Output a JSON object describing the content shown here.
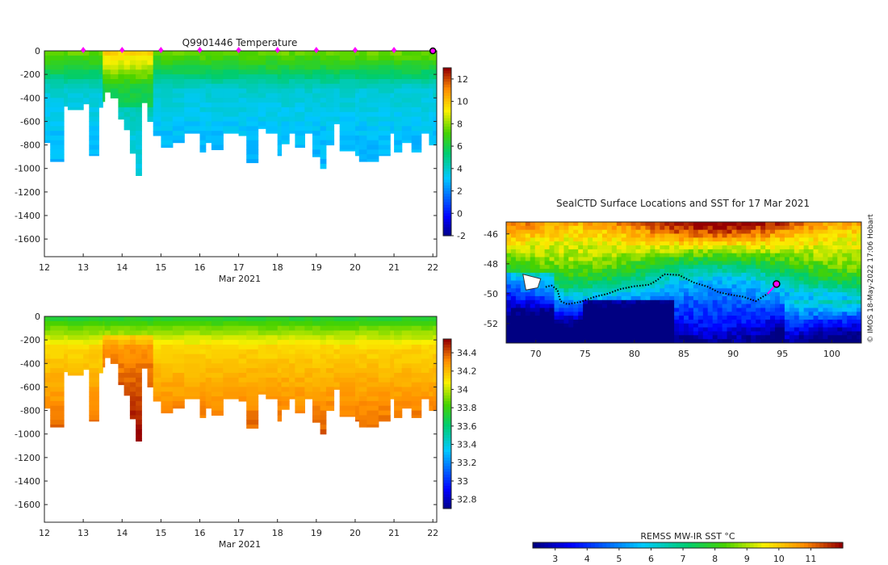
{
  "charts": {
    "temperature": {
      "title": "Q9901446  Temperature",
      "xlabel": "Mar 2021",
      "colorbar_ticks": [
        "12",
        "10",
        "8",
        "6",
        "4",
        "2",
        "0",
        "-2"
      ]
    },
    "salinity": {
      "xlabel": "Mar 2021",
      "colorbar_ticks": [
        "34.4",
        "34.2",
        "34",
        "33.8",
        "33.6",
        "33.4",
        "33.2",
        "33",
        "32.8"
      ]
    },
    "map": {
      "title": "SealCTD Surface Locations and SST for 17 Mar 2021",
      "colorbar_label": "REMSS MW-IR SST °C",
      "colorbar_ticks": [
        "3",
        "4",
        "5",
        "6",
        "7",
        "8",
        "9",
        "10",
        "11"
      ],
      "credit": "© IMOS 18-May-2022 17:06 Hobart"
    }
  },
  "chart_data": [
    {
      "type": "heatmap",
      "title": "Q9901446  Temperature",
      "xlabel": "Mar 2021",
      "ylabel": "",
      "x_ticks": [
        "12",
        "13",
        "14",
        "15",
        "16",
        "17",
        "18",
        "19",
        "20",
        "21",
        "22"
      ],
      "y_ticks": [
        "0",
        "-200",
        "-400",
        "-600",
        "-800",
        "-1000",
        "-1200",
        "-1400",
        "-1600"
      ],
      "xlim": [
        12,
        22.1
      ],
      "ylim": [
        -1750,
        0
      ],
      "colorbar_range": [
        -2,
        13
      ],
      "profile_days": [
        12.0,
        12.15,
        12.5,
        12.6,
        13.0,
        13.15,
        13.4,
        13.5,
        13.55,
        13.7,
        13.9,
        14.05,
        14.2,
        14.35,
        14.5,
        14.65,
        14.8,
        15.0,
        15.3,
        15.6,
        16.0,
        16.15,
        16.3,
        16.6,
        17.0,
        17.2,
        17.5,
        17.7,
        18.0,
        18.1,
        18.3,
        18.45,
        18.7,
        18.9,
        19.1,
        19.25,
        19.45,
        19.6,
        20.0,
        20.1,
        20.3,
        20.6,
        20.9,
        21.0,
        21.2,
        21.45,
        21.7,
        21.9,
        22.0
      ],
      "profile_max_depth": [
        -780,
        -940,
        -470,
        -500,
        -450,
        -890,
        -480,
        -430,
        -350,
        -400,
        -580,
        -670,
        -870,
        -1060,
        -440,
        -600,
        -720,
        -820,
        -780,
        -700,
        -860,
        -780,
        -840,
        -700,
        -720,
        -950,
        -660,
        -700,
        -890,
        -790,
        -700,
        -820,
        -700,
        -900,
        -1000,
        -800,
        -620,
        -850,
        -890,
        -940,
        -940,
        -890,
        -700,
        -860,
        -780,
        -860,
        -700,
        -800,
        -800
      ],
      "surface_marker_days": [
        13,
        14,
        15,
        16,
        17,
        18,
        19,
        20,
        21
      ]
    },
    {
      "type": "heatmap",
      "title": "",
      "xlabel": "Mar 2021",
      "ylabel": "",
      "x_ticks": [
        "12",
        "13",
        "14",
        "15",
        "16",
        "17",
        "18",
        "19",
        "20",
        "21",
        "22"
      ],
      "y_ticks": [
        "0",
        "-200",
        "-400",
        "-600",
        "-800",
        "-1000",
        "-1200",
        "-1400",
        "-1600"
      ],
      "xlim": [
        12,
        22.1
      ],
      "ylim": [
        -1750,
        0
      ],
      "colorbar_range": [
        32.7,
        34.55
      ],
      "profile_days": [
        12.0,
        12.15,
        12.5,
        12.6,
        13.0,
        13.15,
        13.4,
        13.5,
        13.55,
        13.7,
        13.9,
        14.05,
        14.2,
        14.35,
        14.5,
        14.65,
        14.8,
        15.0,
        15.3,
        15.6,
        16.0,
        16.15,
        16.3,
        16.6,
        17.0,
        17.2,
        17.5,
        17.7,
        18.0,
        18.1,
        18.3,
        18.45,
        18.7,
        18.9,
        19.1,
        19.25,
        19.45,
        19.6,
        20.0,
        20.1,
        20.3,
        20.6,
        20.9,
        21.0,
        21.2,
        21.45,
        21.7,
        21.9,
        22.0
      ],
      "profile_max_depth": [
        -780,
        -940,
        -470,
        -500,
        -450,
        -890,
        -480,
        -430,
        -350,
        -400,
        -580,
        -670,
        -870,
        -1060,
        -440,
        -600,
        -720,
        -820,
        -780,
        -700,
        -860,
        -780,
        -840,
        -700,
        -720,
        -950,
        -660,
        -700,
        -890,
        -790,
        -700,
        -820,
        -700,
        -900,
        -1000,
        -800,
        -620,
        -850,
        -890,
        -940,
        -940,
        -890,
        -700,
        -860,
        -780,
        -860,
        -700,
        -800,
        -800
      ]
    },
    {
      "type": "heatmap",
      "title": "SealCTD Surface Locations and SST for 17 Mar 2021",
      "xlabel": "",
      "ylabel": "",
      "x_ticks": [
        "70",
        "75",
        "80",
        "85",
        "90",
        "95",
        "100"
      ],
      "y_ticks": [
        "-46",
        "-48",
        "-50",
        "-52"
      ],
      "xlim": [
        67,
        103
      ],
      "ylim": [
        -53.3,
        -45.2
      ],
      "colorbar_label": "REMSS MW-IR SST °C",
      "colorbar_ticks": [
        "3",
        "4",
        "5",
        "6",
        "7",
        "8",
        "9",
        "10",
        "11"
      ],
      "colorbar_range": [
        2.3,
        12.0
      ],
      "track": [
        [
          71,
          -49.55
        ],
        [
          71.6,
          -49.45
        ],
        [
          72.2,
          -49.75
        ],
        [
          72.5,
          -50.5
        ],
        [
          73.2,
          -50.7
        ],
        [
          74.5,
          -50.55
        ],
        [
          76,
          -50.2
        ],
        [
          77.3,
          -50.0
        ],
        [
          78.5,
          -49.7
        ],
        [
          80,
          -49.5
        ],
        [
          81.5,
          -49.4
        ],
        [
          82.3,
          -49.1
        ],
        [
          83.0,
          -48.7
        ],
        [
          84.5,
          -48.75
        ],
        [
          86,
          -49.25
        ],
        [
          87.5,
          -49.55
        ],
        [
          88.5,
          -49.9
        ],
        [
          90,
          -50.1
        ],
        [
          91,
          -50.2
        ],
        [
          92.3,
          -50.5
        ],
        [
          93.5,
          -50.0
        ],
        [
          94.4,
          -49.35
        ]
      ],
      "current_position": [
        94.4,
        -49.35
      ]
    }
  ]
}
